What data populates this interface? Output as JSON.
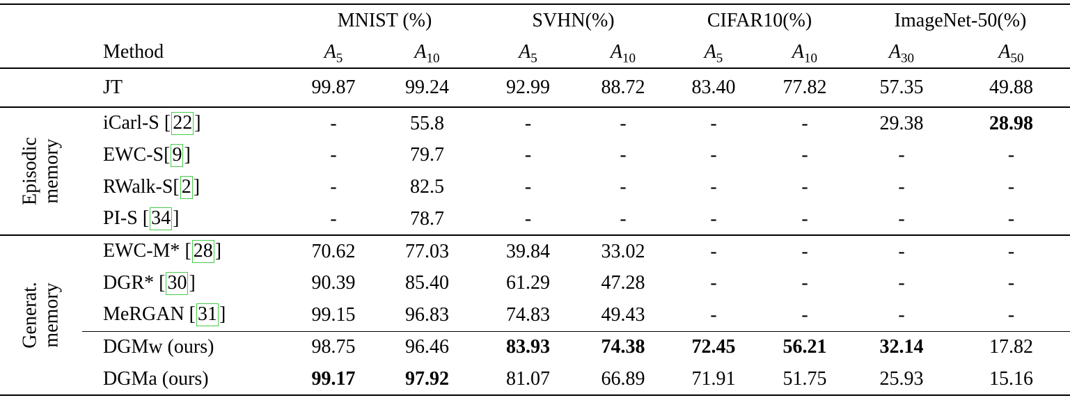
{
  "page": {
    "background": "#ffffff",
    "text_color": "#000000",
    "citation_box_color": "#44cc44"
  },
  "table": {
    "method_header": "Method",
    "column_groups": [
      {
        "label": "MNIST (%)",
        "subcols": [
          {
            "base": "A",
            "sub": "5"
          },
          {
            "base": "A",
            "sub": "10"
          }
        ]
      },
      {
        "label": "SVHN(%)",
        "subcols": [
          {
            "base": "A",
            "sub": "5"
          },
          {
            "base": "A",
            "sub": "10"
          }
        ]
      },
      {
        "label": "CIFAR10(%)",
        "subcols": [
          {
            "base": "A",
            "sub": "5"
          },
          {
            "base": "A",
            "sub": "10"
          }
        ]
      },
      {
        "label": "ImageNet-50(%)",
        "subcols": [
          {
            "base": "A",
            "sub": "30"
          },
          {
            "base": "A",
            "sub": "50"
          }
        ]
      }
    ],
    "groups": [
      {
        "label_lines": [],
        "rows": [
          {
            "method": "JT",
            "citation": null,
            "values": [
              "99.87",
              "99.24",
              "92.99",
              "88.72",
              "83.40",
              "77.82",
              "57.35",
              "49.88"
            ]
          }
        ]
      },
      {
        "label_lines": [
          "Episodic",
          "memory"
        ],
        "rows": [
          {
            "method": "iCarl-S ",
            "citation": "22",
            "values": [
              "-",
              "55.8",
              "-",
              "-",
              "-",
              "-",
              "29.38",
              "28.98"
            ],
            "bold": [
              false,
              false,
              false,
              false,
              false,
              false,
              false,
              true
            ]
          },
          {
            "method": "EWC-S",
            "citation": "9",
            "values": [
              "-",
              "79.7",
              "-",
              "-",
              "-",
              "-",
              "-",
              "-"
            ]
          },
          {
            "method": "RWalk-S",
            "citation": "2",
            "values": [
              "-",
              "82.5",
              "-",
              "-",
              "-",
              "-",
              "-",
              "-"
            ]
          },
          {
            "method": "PI-S ",
            "citation": "34",
            "values": [
              "-",
              "78.7",
              "-",
              "-",
              "-",
              "-",
              "-",
              "-"
            ]
          }
        ]
      },
      {
        "label_lines": [
          "Generat.",
          "memory"
        ],
        "cline_after": 2,
        "rows": [
          {
            "method": "EWC-M* ",
            "citation": "28",
            "values": [
              "70.62",
              "77.03",
              "39.84",
              "33.02",
              "-",
              "-",
              "-",
              "-"
            ]
          },
          {
            "method": "DGR* ",
            "citation": "30",
            "values": [
              "90.39",
              "85.40",
              "61.29",
              "47.28",
              "-",
              "-",
              "-",
              "-"
            ]
          },
          {
            "method": "MeRGAN ",
            "citation": "31",
            "values": [
              "99.15",
              "96.83",
              "74.83",
              "49.43",
              "-",
              "-",
              "-",
              "-"
            ]
          },
          {
            "method": "DGMw (ours)",
            "citation": null,
            "values": [
              "98.75",
              "96.46",
              "83.93",
              "74.38",
              "72.45",
              "56.21",
              "32.14",
              "17.82"
            ],
            "bold": [
              false,
              false,
              true,
              true,
              true,
              true,
              true,
              false
            ]
          },
          {
            "method": "DGMa (ours)",
            "citation": null,
            "values": [
              "99.17",
              "97.92",
              "81.07",
              "66.89",
              "71.91",
              "51.75",
              "25.93",
              "15.16"
            ],
            "bold": [
              true,
              true,
              false,
              false,
              false,
              false,
              false,
              false
            ]
          }
        ]
      }
    ]
  }
}
